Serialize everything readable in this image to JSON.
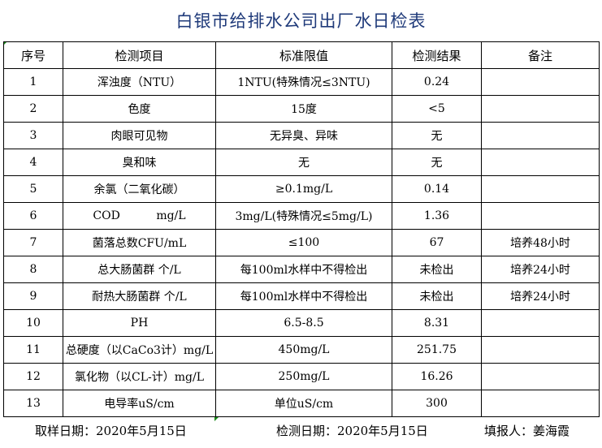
{
  "title": "白银市给排水公司出厂水日检表",
  "columns": [
    "序号",
    "检测项目",
    "标准限值",
    "检测结果",
    "备注"
  ],
  "rows": [
    [
      "1",
      "浑浊度（NTU）",
      "1NTU(特殊情况≤3NTU)",
      "0.24",
      ""
    ],
    [
      "2",
      "色度",
      "15度",
      "<5",
      ""
    ],
    [
      "3",
      "肉眼可见物",
      "无异臭、异味",
      "无",
      ""
    ],
    [
      "4",
      "臭和味",
      "无",
      "无",
      ""
    ],
    [
      "5",
      "余氯（二氧化碳）",
      "≥0.1mg/L",
      "0.14",
      ""
    ],
    [
      "6",
      "COD          mg/L",
      "3mg/L(特殊情况≤5mg/L)",
      "1.36",
      ""
    ],
    [
      "7",
      "菌落总数CFU/mL",
      "≤100",
      "67",
      "培养48小时"
    ],
    [
      "8",
      "总大肠菌群 个/L",
      "每100ml水样中不得检出",
      "未检出",
      "培养24小时"
    ],
    [
      "9",
      "耐热大肠菌群 个/L",
      "每100ml水样中不得检出",
      "未检出",
      "培养24小时"
    ],
    [
      "10",
      "PH",
      "6.5-8.5",
      "8.31",
      ""
    ],
    [
      "11",
      "总硬度（以CaCo3计）mg/L",
      "450mg/L",
      "251.75",
      ""
    ],
    [
      "12",
      "氯化物（以CL-计）mg/L",
      "250mg/L",
      "16.26",
      ""
    ],
    [
      "13",
      "电导率uS/cm",
      "单位uS/cm",
      "300",
      ""
    ]
  ],
  "footer": {
    "sample_date": "取样日期：2020年5月15日",
    "test_date": "检测日期：2020年5月15日",
    "reporter": "填报人：姜海霞"
  }
}
